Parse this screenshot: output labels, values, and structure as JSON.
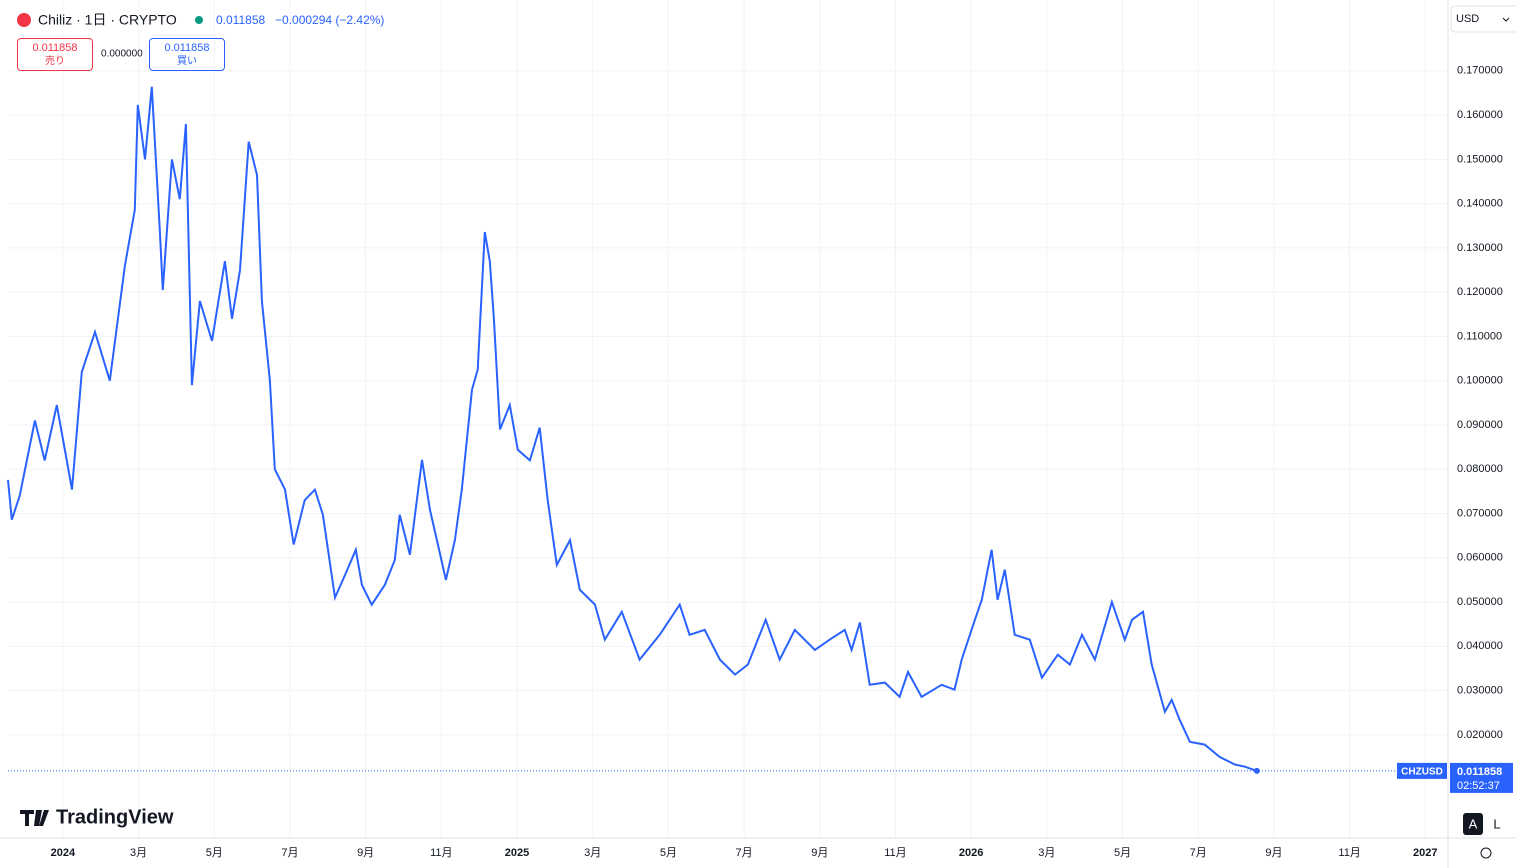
{
  "header": {
    "symbol": "Chiliz · 1日 · CRYPTO",
    "last": "0.011858",
    "change": "−0.000294 (−2.42%)",
    "sell_price": "0.011858",
    "sell_label": "売り",
    "spread": "0.000000",
    "buy_price": "0.011858",
    "buy_label": "買い",
    "currency": "USD",
    "logo": "TradingView",
    "buttons": [
      "A",
      "L"
    ]
  },
  "chart_data": {
    "type": "line",
    "x": [
      -1.45,
      -1.35,
      -1.14,
      -0.74,
      -0.48,
      -0.16,
      0.24,
      0.5,
      0.85,
      1.24,
      1.64,
      1.9,
      1.98,
      2.17,
      2.35,
      2.56,
      2.64,
      2.88,
      3.09,
      3.25,
      3.41,
      3.62,
      3.94,
      4.28,
      4.47,
      4.68,
      4.91,
      5.13,
      5.26,
      5.47,
      5.6,
      5.87,
      6.1,
      6.39,
      6.66,
      6.87,
      7.19,
      7.45,
      7.74,
      7.9,
      8.16,
      8.51,
      8.77,
      8.9,
      9.17,
      9.49,
      9.7,
      9.91,
      10.12,
      10.36,
      10.54,
      10.81,
      10.96,
      11.15,
      11.28,
      11.39,
      11.55,
      11.81,
      12.02,
      12.34,
      12.6,
      12.81,
      13.05,
      13.4,
      13.66,
      14.06,
      14.32,
      14.77,
      15.24,
      15.77,
      16.3,
      16.56,
      16.96,
      17.36,
      17.76,
      18.1,
      18.57,
      18.94,
      19.34,
      19.87,
      20.26,
      20.66,
      20.84,
      21.06,
      21.32,
      21.72,
      22.11,
      22.33,
      22.69,
      23.22,
      23.56,
      23.75,
      24.1,
      24.28,
      24.54,
      24.7,
      24.89,
      25.15,
      25.55,
      25.87,
      26.29,
      26.61,
      26.93,
      27.27,
      27.72,
      28.06,
      28.25,
      28.54,
      28.77,
      29.12,
      29.3,
      29.51,
      29.78,
      30.17,
      30.57,
      30.97,
      31.23,
      31.55
    ],
    "series": [
      {
        "name": "CHZUSD",
        "color": "#2962ff",
        "values": [
          0.0776,
          0.0686,
          0.074,
          0.091,
          0.082,
          0.0945,
          0.0754,
          0.102,
          0.111,
          0.1,
          0.126,
          0.1386,
          0.1623,
          0.15,
          0.1664,
          0.134,
          0.1205,
          0.15,
          0.141,
          0.158,
          0.099,
          0.118,
          0.109,
          0.127,
          0.114,
          0.125,
          0.154,
          0.1465,
          0.118,
          0.1,
          0.08,
          0.0754,
          0.063,
          0.073,
          0.0754,
          0.0697,
          0.051,
          0.056,
          0.0618,
          0.0539,
          0.0494,
          0.0539,
          0.0595,
          0.0697,
          0.0607,
          0.0821,
          0.0708,
          0.063,
          0.055,
          0.064,
          0.0754,
          0.098,
          0.1025,
          0.1336,
          0.127,
          0.114,
          0.089,
          0.0945,
          0.0844,
          0.082,
          0.0894,
          0.073,
          0.0584,
          0.064,
          0.0528,
          0.0494,
          0.0415,
          0.0478,
          0.037,
          0.0426,
          0.0494,
          0.0426,
          0.0437,
          0.037,
          0.0336,
          0.0359,
          0.046,
          0.037,
          0.0437,
          0.0392,
          0.0415,
          0.0437,
          0.0392,
          0.0454,
          0.0313,
          0.0318,
          0.0286,
          0.0342,
          0.0286,
          0.0313,
          0.0302,
          0.037,
          0.046,
          0.0505,
          0.0618,
          0.0505,
          0.0573,
          0.0426,
          0.0415,
          0.0329,
          0.0381,
          0.0359,
          0.0426,
          0.037,
          0.05,
          0.0415,
          0.046,
          0.0478,
          0.0359,
          0.0252,
          0.0279,
          0.0234,
          0.0184,
          0.0178,
          0.015,
          0.0133,
          0.0128,
          0.011858
        ]
      }
    ],
    "last_label": {
      "price": "0.011858",
      "countdown": "02:52:37"
    },
    "xlim": [
      -1.45,
      36.6
    ],
    "ylim": [
      -0.0033,
      0.186
    ],
    "xticks": [
      {
        "value": 0,
        "label": "2024"
      },
      {
        "value": 2,
        "label": "3月"
      },
      {
        "value": 4,
        "label": "5月"
      },
      {
        "value": 6,
        "label": "7月"
      },
      {
        "value": 8,
        "label": "9月"
      },
      {
        "value": 10,
        "label": "11月"
      },
      {
        "value": 12,
        "label": "2025"
      },
      {
        "value": 14,
        "label": "3月"
      },
      {
        "value": 16,
        "label": "5月"
      },
      {
        "value": 18,
        "label": "7月"
      },
      {
        "value": 20,
        "label": "9月"
      },
      {
        "value": 22,
        "label": "11月"
      },
      {
        "value": 24,
        "label": "2026"
      },
      {
        "value": 26,
        "label": "3月"
      },
      {
        "value": 28,
        "label": "5月"
      },
      {
        "value": 30,
        "label": "7月"
      },
      {
        "value": 32,
        "label": "9月"
      },
      {
        "value": 34,
        "label": "11月"
      },
      {
        "value": 36,
        "label": "2027"
      }
    ],
    "yticks": [
      {
        "value": 0.02,
        "label": "0.020000"
      },
      {
        "value": 0.03,
        "label": "0.030000"
      },
      {
        "value": 0.04,
        "label": "0.040000"
      },
      {
        "value": 0.05,
        "label": "0.050000"
      },
      {
        "value": 0.06,
        "label": "0.060000"
      },
      {
        "value": 0.07,
        "label": "0.070000"
      },
      {
        "value": 0.08,
        "label": "0.080000"
      },
      {
        "value": 0.09,
        "label": "0.090000"
      },
      {
        "value": 0.1,
        "label": "0.100000"
      },
      {
        "value": 0.11,
        "label": "0.110000"
      },
      {
        "value": 0.12,
        "label": "0.120000"
      },
      {
        "value": 0.13,
        "label": "0.130000"
      },
      {
        "value": 0.14,
        "label": "0.140000"
      },
      {
        "value": 0.15,
        "label": "0.150000"
      },
      {
        "value": 0.16,
        "label": "0.160000"
      },
      {
        "value": 0.17,
        "label": "0.170000"
      }
    ],
    "grid": true
  }
}
